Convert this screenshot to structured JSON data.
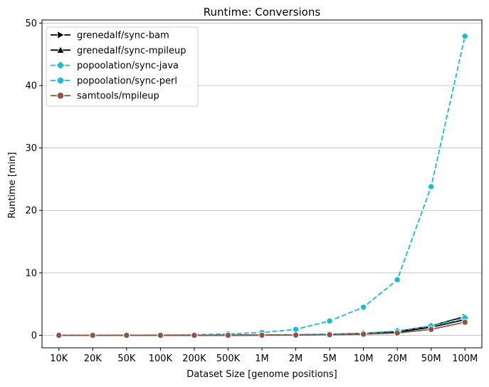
{
  "chart_data": {
    "type": "line",
    "title": "Runtime:  Conversions",
    "xlabel": "Dataset Size  [genome positions]",
    "ylabel": "Runtime  [min]",
    "categories": [
      "10K",
      "20K",
      "50K",
      "100K",
      "200K",
      "500K",
      "1M",
      "2M",
      "5M",
      "10M",
      "20M",
      "50M",
      "100M"
    ],
    "ylim": [
      -2,
      50.5
    ],
    "yticks": [
      0,
      10,
      20,
      30,
      40,
      50
    ],
    "grid": "y",
    "legend_position": "top-left",
    "series": [
      {
        "name": "grenedalf/sync-bam",
        "color": "#000000",
        "marker": "triangle-right",
        "dash": "solid",
        "values": [
          0.0,
          0.0,
          0.0,
          0.0,
          0.0,
          0.02,
          0.04,
          0.07,
          0.15,
          0.3,
          0.6,
          1.5,
          3.0
        ]
      },
      {
        "name": "grenedalf/sync-mpileup",
        "color": "#000000",
        "marker": "triangle-up",
        "dash": "solid",
        "values": [
          0.0,
          0.0,
          0.0,
          0.0,
          0.0,
          0.02,
          0.03,
          0.06,
          0.13,
          0.25,
          0.5,
          1.3,
          2.5
        ]
      },
      {
        "name": "popoolation/sync-java",
        "color": "#17becf",
        "marker": "diamond",
        "dash": "dashed",
        "values": [
          0.0,
          0.0,
          0.0,
          0.0,
          0.01,
          0.02,
          0.04,
          0.08,
          0.17,
          0.33,
          0.7,
          1.5,
          2.8
        ]
      },
      {
        "name": "popoolation/sync-perl",
        "color": "#17becf",
        "marker": "circle",
        "dash": "dashed",
        "values": [
          0.0,
          0.01,
          0.02,
          0.04,
          0.09,
          0.22,
          0.45,
          0.95,
          2.3,
          4.5,
          8.9,
          23.8,
          47.9
        ]
      },
      {
        "name": "samtools/mpileup",
        "color": "#8c564b",
        "marker": "circle",
        "dash": "solid",
        "values": [
          0.0,
          0.0,
          0.0,
          0.0,
          0.0,
          0.01,
          0.02,
          0.04,
          0.1,
          0.18,
          0.37,
          0.95,
          2.1
        ]
      }
    ]
  }
}
